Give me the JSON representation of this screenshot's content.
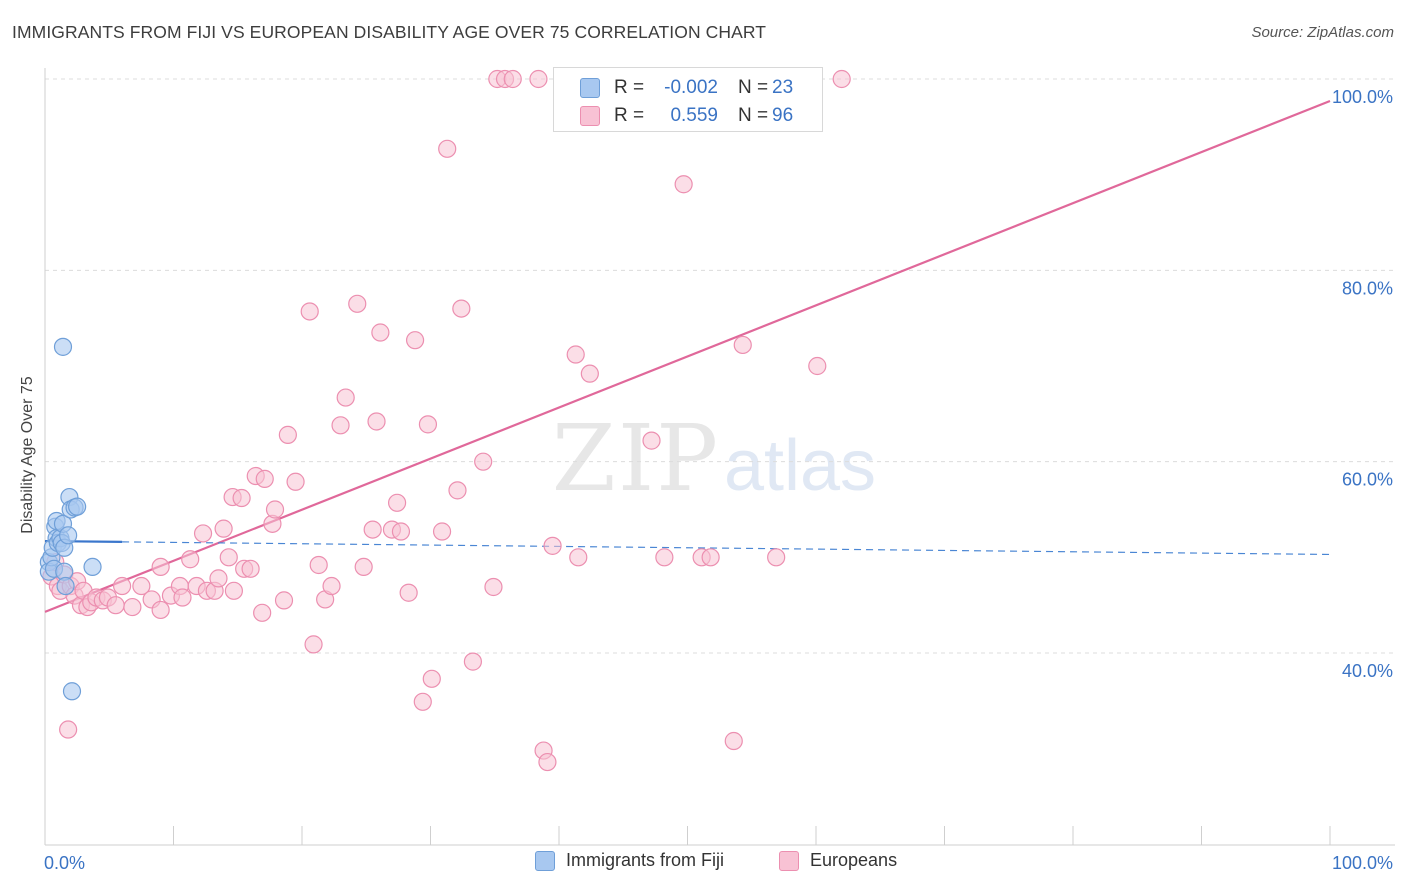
{
  "header": {
    "title": "IMMIGRANTS FROM FIJI VS EUROPEAN DISABILITY AGE OVER 75 CORRELATION CHART",
    "source": "Source: ZipAtlas.com"
  },
  "watermark": {
    "zip": "ZIP",
    "atlas": "atlas"
  },
  "stats_box": {
    "rows": [
      {
        "r_label": "R =",
        "r_value": "-0.002",
        "n_label": "N =",
        "n_value": "23",
        "fill": "#a8c8f0",
        "stroke": "#6f9fd8"
      },
      {
        "r_label": "R =",
        "r_value": "0.559",
        "n_label": "N =",
        "n_value": "96",
        "fill": "#f8c2d4",
        "stroke": "#ec8fb0"
      }
    ]
  },
  "legend": [
    {
      "label": "Immigrants from Fiji",
      "fill": "#a8c8f0",
      "stroke": "#6f9fd8"
    },
    {
      "label": "Europeans",
      "fill": "#f8c2d4",
      "stroke": "#ec8fb0"
    }
  ],
  "chart_data": {
    "type": "scatter",
    "title": "IMMIGRANTS FROM FIJI VS EUROPEAN DISABILITY AGE OVER 75 CORRELATION CHART",
    "xlabel": "",
    "ylabel": "Disability Age Over 75",
    "xlim": [
      0,
      100
    ],
    "ylim": [
      20,
      101
    ],
    "x_tick_labels": [
      "0.0%",
      "100.0%"
    ],
    "y_ticks": [
      40,
      60,
      80,
      100
    ],
    "y_tick_labels": [
      "40.0%",
      "60.0%",
      "80.0%",
      "100.0%"
    ],
    "grid": "horizontal dashed",
    "legend_position": "bottom-center",
    "colors": {
      "fiji": "#6f9fd8",
      "europeans": "#ec8fb0",
      "tick_label": "#3a73c4"
    },
    "series": [
      {
        "name": "Immigrants from Fiji",
        "color": "#6f9fd8",
        "trend": {
          "x0": 0,
          "y0": 51.7,
          "x1": 100,
          "y1": 50.3,
          "solid_until_x": 6
        },
        "points": [
          [
            0.3,
            49.5
          ],
          [
            0.3,
            48.5
          ],
          [
            0.5,
            50.0
          ],
          [
            0.6,
            51.0
          ],
          [
            0.7,
            48.8
          ],
          [
            0.8,
            53.2
          ],
          [
            0.9,
            52.0
          ],
          [
            0.9,
            53.8
          ],
          [
            1.0,
            51.5
          ],
          [
            1.2,
            52.0
          ],
          [
            1.3,
            51.5
          ],
          [
            1.4,
            53.5
          ],
          [
            1.5,
            48.5
          ],
          [
            1.5,
            51.0
          ],
          [
            1.4,
            72.0
          ],
          [
            1.6,
            47.0
          ],
          [
            1.8,
            52.3
          ],
          [
            1.9,
            56.3
          ],
          [
            2.0,
            55.0
          ],
          [
            2.1,
            36.0
          ],
          [
            2.3,
            55.2
          ],
          [
            2.5,
            55.3
          ],
          [
            3.7,
            49.0
          ]
        ]
      },
      {
        "name": "Europeans",
        "color": "#ec8fb0",
        "trend": {
          "x0": 0,
          "y0": 44.3,
          "x1": 100,
          "y1": 97.7
        },
        "points": [
          [
            0.5,
            48.0
          ],
          [
            0.8,
            49.5
          ],
          [
            1.0,
            47.0
          ],
          [
            1.2,
            46.5
          ],
          [
            1.5,
            48.2
          ],
          [
            2.0,
            47.0
          ],
          [
            2.3,
            46.0
          ],
          [
            2.5,
            47.5
          ],
          [
            2.8,
            45.0
          ],
          [
            3.0,
            46.5
          ],
          [
            3.3,
            44.8
          ],
          [
            3.6,
            45.3
          ],
          [
            4.0,
            45.8
          ],
          [
            4.5,
            45.5
          ],
          [
            4.9,
            45.8
          ],
          [
            5.5,
            45.0
          ],
          [
            6.0,
            47.0
          ],
          [
            6.8,
            44.8
          ],
          [
            7.5,
            47.0
          ],
          [
            8.3,
            45.6
          ],
          [
            9.0,
            44.5
          ],
          [
            9.0,
            49.0
          ],
          [
            9.8,
            46.0
          ],
          [
            10.5,
            47.0
          ],
          [
            10.7,
            45.8
          ],
          [
            11.3,
            49.8
          ],
          [
            11.8,
            47.0
          ],
          [
            12.3,
            52.5
          ],
          [
            12.6,
            46.5
          ],
          [
            13.2,
            46.5
          ],
          [
            13.5,
            47.8
          ],
          [
            13.9,
            53.0
          ],
          [
            14.3,
            50.0
          ],
          [
            14.7,
            46.5
          ],
          [
            14.6,
            56.3
          ],
          [
            15.3,
            56.2
          ],
          [
            15.5,
            48.8
          ],
          [
            16.0,
            48.8
          ],
          [
            16.4,
            58.5
          ],
          [
            16.9,
            44.2
          ],
          [
            17.1,
            58.2
          ],
          [
            17.7,
            53.5
          ],
          [
            17.9,
            55.0
          ],
          [
            18.6,
            45.5
          ],
          [
            18.9,
            62.8
          ],
          [
            19.5,
            57.9
          ],
          [
            20.6,
            75.7
          ],
          [
            20.9,
            40.9
          ],
          [
            21.3,
            49.2
          ],
          [
            21.8,
            45.6
          ],
          [
            22.3,
            47.0
          ],
          [
            23.0,
            63.8
          ],
          [
            23.4,
            66.7
          ],
          [
            24.3,
            76.5
          ],
          [
            24.8,
            49.0
          ],
          [
            25.5,
            52.9
          ],
          [
            25.8,
            64.2
          ],
          [
            26.1,
            73.5
          ],
          [
            27.0,
            52.9
          ],
          [
            27.4,
            55.7
          ],
          [
            27.7,
            52.7
          ],
          [
            28.3,
            46.3
          ],
          [
            28.8,
            72.7
          ],
          [
            29.4,
            34.9
          ],
          [
            29.8,
            63.9
          ],
          [
            30.1,
            37.3
          ],
          [
            30.9,
            52.7
          ],
          [
            31.3,
            92.7
          ],
          [
            32.1,
            57.0
          ],
          [
            32.4,
            76.0
          ],
          [
            33.3,
            39.1
          ],
          [
            34.1,
            60.0
          ],
          [
            34.9,
            46.9
          ],
          [
            35.2,
            100.0
          ],
          [
            35.8,
            100.0
          ],
          [
            36.4,
            100.0
          ],
          [
            38.4,
            100.0
          ],
          [
            38.8,
            29.8
          ],
          [
            39.1,
            28.6
          ],
          [
            39.5,
            51.2
          ],
          [
            41.3,
            71.2
          ],
          [
            41.5,
            50.0
          ],
          [
            41.7,
            100.0
          ],
          [
            42.4,
            69.2
          ],
          [
            43.4,
            97.8
          ],
          [
            47.2,
            62.2
          ],
          [
            48.2,
            50.0
          ],
          [
            49.7,
            89.0
          ],
          [
            51.1,
            50.0
          ],
          [
            51.8,
            50.0
          ],
          [
            53.6,
            30.8
          ],
          [
            54.3,
            72.2
          ],
          [
            56.9,
            50.0
          ],
          [
            60.1,
            70.0
          ],
          [
            62.0,
            100.0
          ],
          [
            1.8,
            32.0
          ]
        ]
      }
    ]
  }
}
